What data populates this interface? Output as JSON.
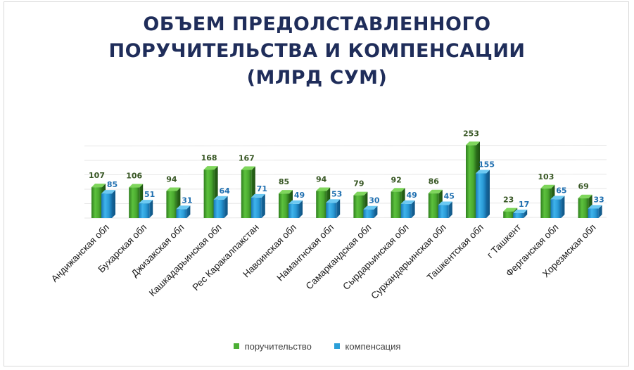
{
  "chart_data": {
    "type": "bar",
    "title_lines": [
      "ОБЪЕМ ПРЕДОЛСТАВЛЕННОГО",
      "ПОРУЧИТЕЛЬСТВА И КОМПЕНСАЦИИ",
      "(МЛРД СУМ)"
    ],
    "categories": [
      "Андижанская обл",
      "Бухарская обл",
      "Джизакская обл",
      "Кашкадарьинская обл",
      "Рес Каракалпакстан",
      "Навоинская обл",
      "Намангнская обл",
      "Самаркандская обл",
      "Сырдарьинская обл",
      "Сурхандарьинская обл",
      "Ташкентская обл",
      "г Ташкент",
      "Ферганская обл",
      "Хорезмская обл"
    ],
    "series": [
      {
        "name": "поручительство",
        "color": "#4caf35",
        "label_color": "#375623",
        "values": [
          107,
          106,
          94,
          168,
          167,
          85,
          94,
          79,
          92,
          86,
          253,
          23,
          103,
          69
        ]
      },
      {
        "name": "компенсация",
        "color": "#2b9fd8",
        "label_color": "#1f6fb0",
        "values": [
          85,
          51,
          31,
          64,
          71,
          49,
          53,
          30,
          49,
          45,
          155,
          17,
          65,
          33
        ]
      }
    ],
    "ylim": [
      0,
      300
    ],
    "grid": true,
    "bar_style": "3d-cylinder",
    "legend_position": "bottom",
    "xlabel": "",
    "ylabel": ""
  }
}
